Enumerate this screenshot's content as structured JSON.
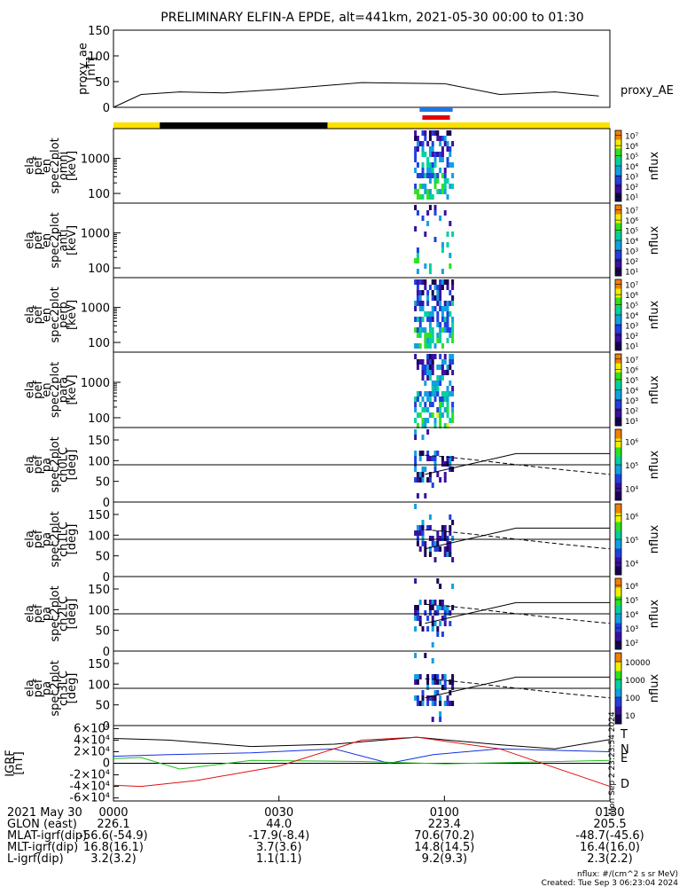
{
  "title": "PRELIMINARY ELFIN-A EPDE, alt=441km, 2021-05-30 00:00 to 01:30",
  "time_range": [
    "00:00",
    "01:30"
  ],
  "colors": {
    "yellow": "#ffe000",
    "black": "#000000",
    "blue": "#1e78e6",
    "red": "#e60000",
    "trace_black": "#000000",
    "trace_blue": "#1030e0",
    "trace_green": "#20c020",
    "trace_red": "#e01010"
  },
  "chart_data": [
    {
      "type": "line",
      "name": "proxy_ae",
      "ylabel_lines": [
        "proxy_ae",
        "[nT]"
      ],
      "ylim": [
        0,
        150
      ],
      "yticks": [
        "0",
        "50",
        "100",
        "150"
      ],
      "legend": "proxy_AE",
      "x_min": [
        0,
        5,
        12,
        20,
        30,
        45,
        60,
        70,
        80,
        88
      ],
      "y": [
        0,
        25,
        30,
        28,
        35,
        48,
        46,
        25,
        30,
        22
      ]
    },
    {
      "type": "heatmap",
      "name": "ela_pef_en_spec2plot_omni",
      "ylabel_lines": [
        "ela",
        "pef",
        "en",
        "spec2plot",
        "omni",
        "[keV]"
      ],
      "scale": "log",
      "yticks": [
        "100",
        "1000"
      ],
      "colorbar_ticks": [
        "10¹",
        "10²",
        "10³",
        "10⁴",
        "10⁵",
        "10⁶",
        "10⁷"
      ],
      "colorbar_label": "nflux"
    },
    {
      "type": "heatmap",
      "name": "ela_pef_en_spec2plot_anti",
      "ylabel_lines": [
        "ela",
        "pef",
        "en",
        "spec2plot",
        "anti",
        "[keV]"
      ],
      "scale": "log",
      "yticks": [
        "100",
        "1000"
      ],
      "colorbar_ticks": [
        "10¹",
        "10²",
        "10³",
        "10⁴",
        "10⁵",
        "10⁶",
        "10⁷"
      ],
      "colorbar_label": "nflux"
    },
    {
      "type": "heatmap",
      "name": "ela_pef_en_spec2plot_perp",
      "ylabel_lines": [
        "ela",
        "pef",
        "en",
        "spec2plot",
        "perp",
        "[keV]"
      ],
      "scale": "log",
      "yticks": [
        "100",
        "1000"
      ],
      "colorbar_ticks": [
        "10¹",
        "10²",
        "10³",
        "10⁴",
        "10⁵",
        "10⁶",
        "10⁷"
      ],
      "colorbar_label": "nflux"
    },
    {
      "type": "heatmap",
      "name": "ela_pef_en_spec2plot_para",
      "ylabel_lines": [
        "ela",
        "pef",
        "en",
        "spec2plot",
        "para",
        "[keV]"
      ],
      "scale": "log",
      "yticks": [
        "100",
        "1000"
      ],
      "colorbar_ticks": [
        "10¹",
        "10²",
        "10³",
        "10⁴",
        "10⁵",
        "10⁶",
        "10⁷"
      ],
      "colorbar_label": "nflux"
    },
    {
      "type": "heatmap",
      "name": "ela_pef_pa_spec2plot_ch0LC",
      "ylabel_lines": [
        "ela",
        "pef",
        "pa",
        "spec2plot",
        "ch0LC",
        "[deg]"
      ],
      "ylim": [
        0,
        180
      ],
      "yticks": [
        "0",
        "50",
        "100",
        "150"
      ],
      "colorbar_ticks": [
        "10⁴",
        "10⁵",
        "10⁶"
      ],
      "colorbar_label": "nflux"
    },
    {
      "type": "heatmap",
      "name": "ela_pef_pa_spec2plot_ch1LC",
      "ylabel_lines": [
        "ela",
        "pef",
        "pa",
        "spec2plot",
        "ch1LC",
        "[deg]"
      ],
      "ylim": [
        0,
        180
      ],
      "yticks": [
        "0",
        "50",
        "100",
        "150"
      ],
      "colorbar_ticks": [
        "10⁴",
        "10⁵",
        "10⁶"
      ],
      "colorbar_label": "nflux"
    },
    {
      "type": "heatmap",
      "name": "ela_pef_pa_spec2plot_ch2LC",
      "ylabel_lines": [
        "ela",
        "pef",
        "pa",
        "spec2plot",
        "ch2LC",
        "[deg]"
      ],
      "ylim": [
        0,
        180
      ],
      "yticks": [
        "0",
        "50",
        "100",
        "150"
      ],
      "colorbar_ticks": [
        "10²",
        "10³",
        "10⁴",
        "10⁵",
        "10⁶"
      ],
      "colorbar_label": "nflux"
    },
    {
      "type": "heatmap",
      "name": "ela_pef_pa_spec2plot_ch3LC",
      "ylabel_lines": [
        "ela",
        "pef",
        "pa",
        "spec2plot",
        "ch3LC",
        "[deg]"
      ],
      "ylim": [
        0,
        180
      ],
      "yticks": [
        "0",
        "50",
        "100",
        "150"
      ],
      "colorbar_ticks": [
        "10",
        "100",
        "1000",
        "10000"
      ],
      "colorbar_label": "nflux"
    },
    {
      "type": "line",
      "name": "IGRF",
      "ylabel_lines": [
        "IGRF",
        "[nT]"
      ],
      "ylim": [
        -60000,
        60000
      ],
      "yticks": [
        "-6×10⁴",
        "-4×10⁴",
        "-2×10⁴",
        "0",
        "2×10⁴",
        "4×10⁴",
        "6×10⁴"
      ],
      "series": [
        {
          "name": "T",
          "color": "#000000",
          "x_min": [
            0,
            10,
            25,
            40,
            55,
            70,
            80,
            90
          ],
          "y": [
            43000,
            40000,
            29000,
            33000,
            45000,
            32000,
            25000,
            41000
          ]
        },
        {
          "name": "N",
          "color": "#1030e0",
          "x_min": [
            0,
            10,
            25,
            40,
            50,
            58,
            70,
            90
          ],
          "y": [
            12000,
            15000,
            18000,
            25000,
            0,
            15000,
            25000,
            20000
          ]
        },
        {
          "name": "E",
          "color": "#20c020",
          "x_min": [
            0,
            5,
            12,
            25,
            45,
            60,
            75,
            90
          ],
          "y": [
            8000,
            10000,
            -10000,
            5000,
            3000,
            -1000,
            2000,
            5000
          ]
        },
        {
          "name": "D",
          "color": "#e01010",
          "x_min": [
            0,
            5,
            15,
            30,
            45,
            55,
            70,
            90
          ],
          "y": [
            -38000,
            -40000,
            -30000,
            -5000,
            40000,
            45000,
            25000,
            -40000
          ]
        }
      ]
    }
  ],
  "footer": {
    "rows": [
      {
        "label": "2021 May 30",
        "values": [
          "0000",
          "0030",
          "0100",
          "0130"
        ]
      },
      {
        "label": "GLON (east)",
        "values": [
          "226.1",
          "44.0",
          "223.4",
          "205.5"
        ]
      },
      {
        "label": "MLAT-igrf(dip)",
        "values": [
          "-56.6(-54.9)",
          "-17.9(-8.4)",
          "70.6(70.2)",
          "-48.7(-45.6)"
        ]
      },
      {
        "label": "MLT-igrf(dip)",
        "values": [
          "16.8(16.1)",
          "3.7(3.6)",
          "14.8(14.5)",
          "16.4(16.0)"
        ]
      },
      {
        "label": "L-igrf(dip)",
        "values": [
          "3.2(3.2)",
          "1.1(1.1)",
          "9.2(9.3)",
          "2.3(2.2)"
        ]
      }
    ],
    "units_note": "nflux: #/(cm^2 s sr MeV)",
    "created": "Created: Tue Sep  3 06:23:04 2024",
    "side_stamp": "Mon Sep  2 23:23:54 2024"
  }
}
